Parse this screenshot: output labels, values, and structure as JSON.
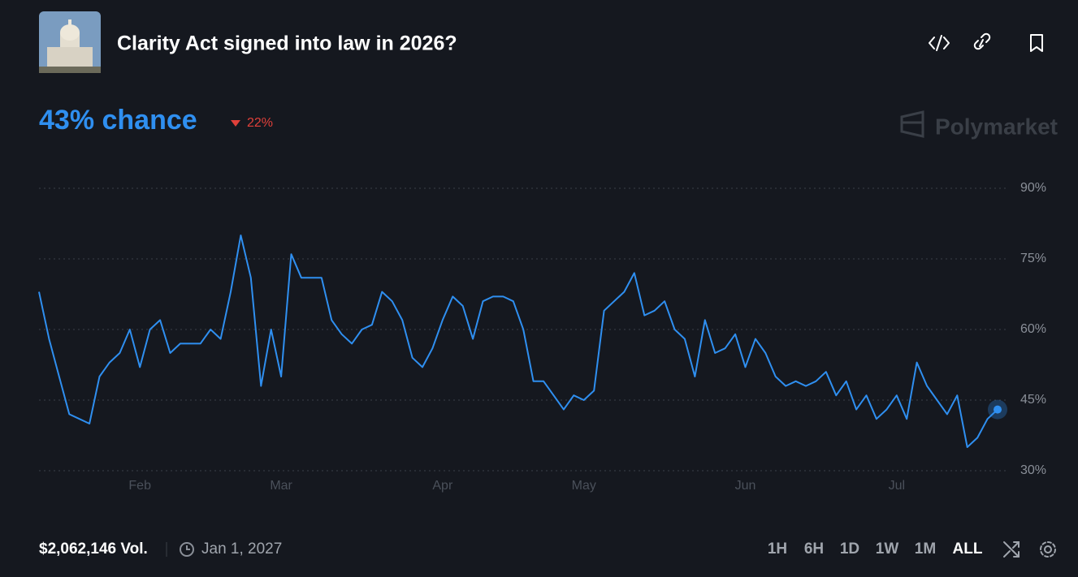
{
  "header": {
    "title": "Clarity Act signed into law in 2026?"
  },
  "chance": "43% chance",
  "change": "22%",
  "brand": "Polymarket",
  "chart_data": {
    "type": "line",
    "categories": [
      null,
      null,
      null,
      null,
      null,
      null,
      null,
      null,
      null,
      null,
      "Feb",
      null,
      null,
      null,
      null,
      null,
      null,
      null,
      null,
      null,
      null,
      null,
      null,
      null,
      "Mar",
      null,
      null,
      null,
      null,
      null,
      null,
      null,
      null,
      null,
      null,
      null,
      null,
      null,
      null,
      null,
      "Apr",
      null,
      null,
      null,
      null,
      null,
      null,
      null,
      null,
      null,
      null,
      null,
      null,
      null,
      "May",
      null,
      null,
      null,
      null,
      null,
      null,
      null,
      null,
      null,
      null,
      null,
      null,
      null,
      null,
      null,
      "Jun",
      null,
      null,
      null,
      null,
      null,
      null,
      null,
      null,
      null,
      null,
      null,
      null,
      null,
      null,
      "Jul",
      null,
      null,
      null,
      null,
      null,
      null,
      null,
      null,
      null,
      null
    ],
    "values": [
      68,
      58,
      50,
      42,
      41,
      40,
      50,
      53,
      55,
      60,
      52,
      60,
      62,
      55,
      57,
      57,
      57,
      60,
      58,
      68,
      80,
      71,
      48,
      60,
      50,
      76,
      71,
      71,
      71,
      62,
      59,
      57,
      60,
      61,
      68,
      66,
      62,
      54,
      52,
      56,
      62,
      67,
      65,
      58,
      66,
      67,
      67,
      66,
      60,
      49,
      49,
      46,
      43,
      46,
      45,
      47,
      64,
      66,
      68,
      72,
      63,
      64,
      66,
      60,
      58,
      50,
      62,
      55,
      56,
      59,
      52,
      58,
      55,
      50,
      48,
      49,
      48,
      49,
      51,
      46,
      49,
      43,
      46,
      41,
      43,
      46,
      41,
      53,
      48,
      45,
      42,
      46,
      35,
      37,
      41,
      43
    ],
    "color": "#2f8ff0",
    "ylim": [
      30,
      90
    ],
    "yticks": [
      {
        "value": 30,
        "label": "30%"
      },
      {
        "value": 45,
        "label": "45%"
      },
      {
        "value": 60,
        "label": "60%"
      },
      {
        "value": 75,
        "label": "75%"
      },
      {
        "value": 90,
        "label": "90%"
      }
    ],
    "grid": true
  },
  "footer": {
    "volume": "$2,062,146 Vol.",
    "end_date": "Jan 1, 2027",
    "ranges": [
      "1H",
      "6H",
      "1D",
      "1W",
      "1M",
      "ALL"
    ],
    "active_range": 5
  }
}
